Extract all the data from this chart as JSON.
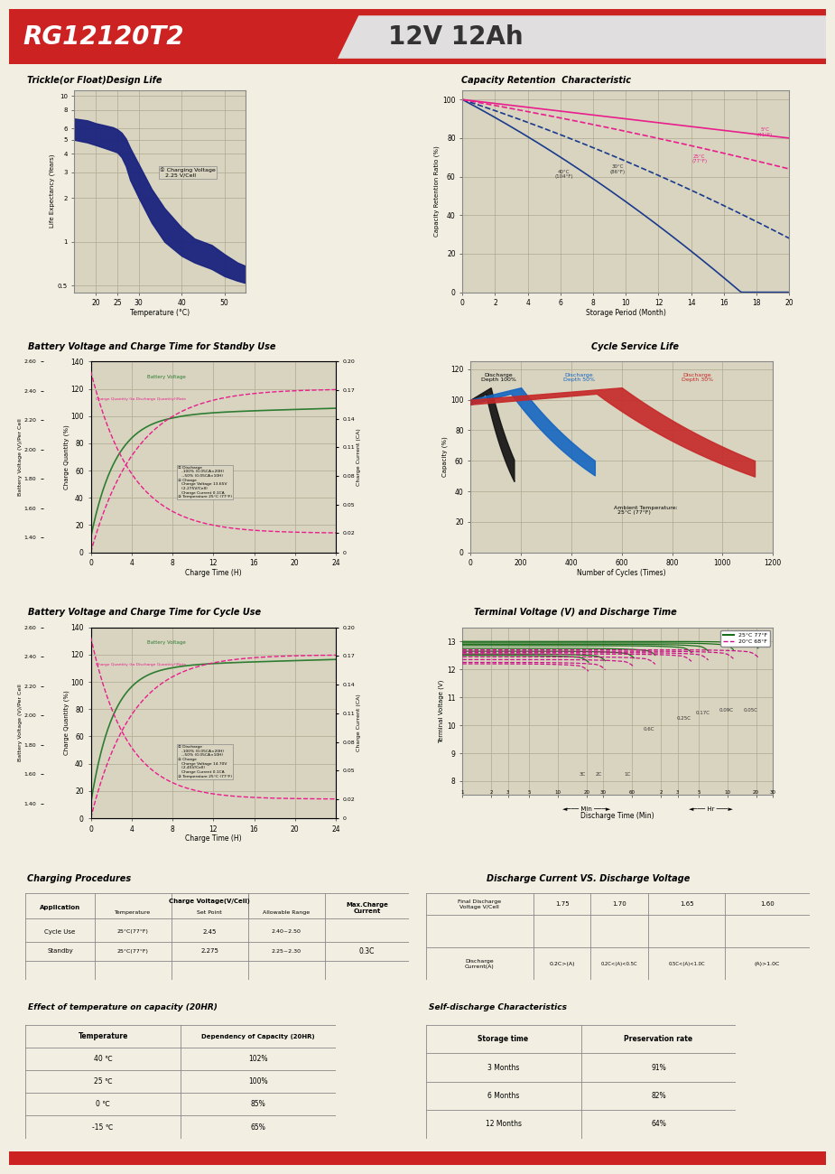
{
  "header_model": "RG12120T2",
  "header_title": "12V 12Ah",
  "header_red": "#cc2222",
  "bg_color": "#f2efe2",
  "plot_bg": "#d8d4c0",
  "grid_color": "#b0a890",
  "border_color": "#888888",
  "section_titles": {
    "trickle": "Trickle(or Float)Design Life",
    "capacity": "Capacity Retention  Characteristic",
    "standby": "Battery Voltage and Charge Time for Standby Use",
    "cycle_life": "Cycle Service Life",
    "cycle_charge": "Battery Voltage and Charge Time for Cycle Use",
    "terminal": "Terminal Voltage (V) and Discharge Time",
    "charging_proc": "Charging Procedures",
    "discharge_vs": "Discharge Current VS. Discharge Voltage",
    "temp_effect": "Effect of temperature on capacity (20HR)",
    "self_discharge": "Self-discharge Characteristics"
  }
}
